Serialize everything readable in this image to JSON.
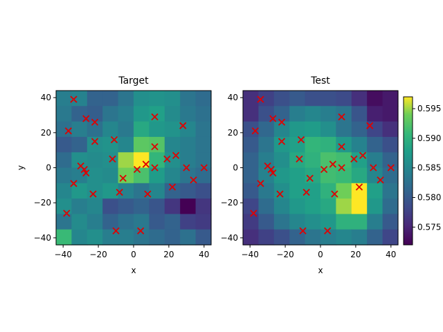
{
  "chart_data": [
    {
      "type": "heatmap",
      "title": "Target",
      "xlabel": "x",
      "ylabel": "y",
      "xlim": [
        -44,
        44
      ],
      "ylim": [
        -44,
        44
      ],
      "xticks": [
        -40,
        -20,
        0,
        20,
        40
      ],
      "yticks": [
        -40,
        -20,
        0,
        20,
        40
      ],
      "grid": false,
      "colormap": "viridis",
      "grid_rows_top_to_bottom": [
        [
          0.584,
          0.5845,
          0.581,
          0.581,
          0.583,
          0.586,
          0.5865,
          0.586,
          0.583,
          0.582
        ],
        [
          0.5835,
          0.581,
          0.5805,
          0.583,
          0.584,
          0.587,
          0.588,
          0.5855,
          0.5835,
          0.5825
        ],
        [
          0.5825,
          0.584,
          0.5825,
          0.585,
          0.5835,
          0.589,
          0.587,
          0.5865,
          0.585,
          0.583
        ],
        [
          0.58,
          0.581,
          0.586,
          0.5865,
          0.585,
          0.593,
          0.5925,
          0.585,
          0.584,
          0.583
        ],
        [
          0.582,
          0.586,
          0.5855,
          0.586,
          0.595,
          0.597,
          0.5905,
          0.586,
          0.584,
          0.583
        ],
        [
          0.5835,
          0.584,
          0.586,
          0.5855,
          0.594,
          0.592,
          0.5875,
          0.585,
          0.583,
          0.582
        ],
        [
          0.585,
          0.587,
          0.586,
          0.587,
          0.5845,
          0.583,
          0.585,
          0.581,
          0.58,
          0.579
        ],
        [
          0.586,
          0.584,
          0.585,
          0.579,
          0.58,
          0.581,
          0.5795,
          0.5765,
          0.572,
          0.5765
        ],
        [
          0.583,
          0.5855,
          0.584,
          0.581,
          0.5825,
          0.5835,
          0.58,
          0.581,
          0.5775,
          0.577
        ],
        [
          0.591,
          0.585,
          0.586,
          0.584,
          0.584,
          0.583,
          0.582,
          0.581,
          0.5825,
          0.58
        ]
      ],
      "vmin": 0.572,
      "vmax": 0.597,
      "scatter": {
        "marker": "x",
        "color": "#e00000",
        "points": [
          [
            -34,
            39
          ],
          [
            -37,
            21
          ],
          [
            -27,
            28
          ],
          [
            -22,
            26
          ],
          [
            -22,
            15
          ],
          [
            -11,
            16
          ],
          [
            12,
            29
          ],
          [
            28,
            24
          ],
          [
            12,
            12
          ],
          [
            -30,
            1
          ],
          [
            -28,
            -1
          ],
          [
            -27,
            -3
          ],
          [
            -12,
            5
          ],
          [
            2,
            -1
          ],
          [
            7,
            2
          ],
          [
            12,
            0
          ],
          [
            24,
            7
          ],
          [
            19,
            5
          ],
          [
            30,
            0
          ],
          [
            40,
            0
          ],
          [
            -34,
            -9
          ],
          [
            -23,
            -15
          ],
          [
            -8,
            -14
          ],
          [
            -6,
            -6
          ],
          [
            8,
            -15
          ],
          [
            22,
            -11
          ],
          [
            34,
            -7
          ],
          [
            -38,
            -26
          ],
          [
            -10,
            -36
          ],
          [
            4,
            -36
          ]
        ]
      }
    },
    {
      "type": "heatmap",
      "title": "Test",
      "xlabel": "x",
      "ylabel": "",
      "xlim": [
        -44,
        44
      ],
      "ylim": [
        -44,
        44
      ],
      "xticks": [
        -40,
        -20,
        0,
        20,
        40
      ],
      "yticks": [
        -40,
        -20,
        0,
        20,
        40
      ],
      "grid": false,
      "colormap": "viridis",
      "grid_rows_top_to_bottom": [
        [
          0.576,
          0.5775,
          0.579,
          0.58,
          0.579,
          0.579,
          0.5785,
          0.576,
          0.573,
          0.574
        ],
        [
          0.576,
          0.579,
          0.581,
          0.584,
          0.585,
          0.584,
          0.583,
          0.5795,
          0.5745,
          0.574
        ],
        [
          0.579,
          0.5815,
          0.585,
          0.587,
          0.5875,
          0.586,
          0.583,
          0.581,
          0.578,
          0.576
        ],
        [
          0.58,
          0.583,
          0.587,
          0.588,
          0.5905,
          0.59,
          0.587,
          0.5845,
          0.581,
          0.579
        ],
        [
          0.581,
          0.584,
          0.586,
          0.589,
          0.59,
          0.592,
          0.5915,
          0.588,
          0.584,
          0.581
        ],
        [
          0.581,
          0.5845,
          0.587,
          0.588,
          0.589,
          0.5915,
          0.591,
          0.589,
          0.585,
          0.582
        ],
        [
          0.58,
          0.5835,
          0.586,
          0.588,
          0.588,
          0.59,
          0.594,
          0.597,
          0.588,
          0.583
        ],
        [
          0.578,
          0.582,
          0.585,
          0.587,
          0.588,
          0.589,
          0.595,
          0.597,
          0.587,
          0.582
        ],
        [
          0.577,
          0.58,
          0.583,
          0.585,
          0.586,
          0.587,
          0.59,
          0.59,
          0.584,
          0.58
        ],
        [
          0.576,
          0.5775,
          0.579,
          0.581,
          0.583,
          0.584,
          0.585,
          0.584,
          0.581,
          0.578
        ]
      ],
      "vmin": 0.572,
      "vmax": 0.597,
      "scatter": {
        "marker": "x",
        "color": "#e00000",
        "points": [
          [
            -34,
            39
          ],
          [
            -37,
            21
          ],
          [
            -27,
            28
          ],
          [
            -22,
            26
          ],
          [
            -22,
            15
          ],
          [
            -11,
            16
          ],
          [
            12,
            29
          ],
          [
            28,
            24
          ],
          [
            12,
            12
          ],
          [
            -30,
            1
          ],
          [
            -28,
            -1
          ],
          [
            -27,
            -3
          ],
          [
            -12,
            5
          ],
          [
            2,
            -1
          ],
          [
            7,
            2
          ],
          [
            12,
            0
          ],
          [
            24,
            7
          ],
          [
            19,
            5
          ],
          [
            30,
            0
          ],
          [
            40,
            0
          ],
          [
            -34,
            -9
          ],
          [
            -23,
            -15
          ],
          [
            -8,
            -14
          ],
          [
            -6,
            -6
          ],
          [
            8,
            -15
          ],
          [
            22,
            -11
          ],
          [
            34,
            -7
          ],
          [
            -38,
            -26
          ],
          [
            -10,
            -36
          ],
          [
            4,
            -36
          ]
        ]
      }
    }
  ],
  "colorbar": {
    "vmin": 0.572,
    "vmax": 0.597,
    "ticks": [
      0.575,
      0.58,
      0.585,
      0.59,
      0.595
    ],
    "tick_labels": [
      "0.575",
      "0.580",
      "0.585",
      "0.590",
      "0.595"
    ]
  }
}
